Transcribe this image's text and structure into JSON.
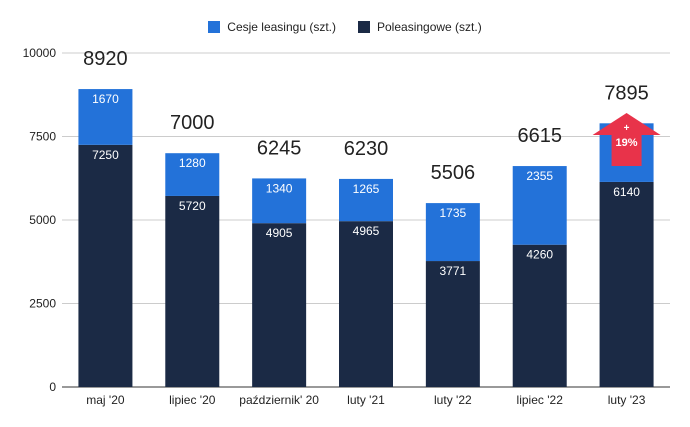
{
  "chart_data": {
    "type": "bar",
    "stacked": true,
    "categories": [
      "maj '20",
      "lipiec '20",
      "październik' 20",
      "luty '21",
      "luty '22",
      "lipiec '22",
      "luty '23"
    ],
    "series": [
      {
        "name": "Poleasingowe (szt.)",
        "values": [
          7250,
          5720,
          4905,
          4965,
          3771,
          4260,
          6140
        ],
        "color": "#1b2a45"
      },
      {
        "name": "Cesje leasingu (szt.)",
        "values": [
          1670,
          1280,
          1340,
          1265,
          1735,
          2355,
          1755
        ],
        "color": "#2372d9"
      }
    ],
    "totals": [
      "8920",
      "7000",
      "6245",
      "6230",
      "5506",
      "6615",
      "7895"
    ],
    "y_ticks": [
      "0",
      "2500",
      "5000",
      "7500",
      "10000"
    ],
    "ylim": [
      0,
      10000
    ],
    "grid": true,
    "legend_position": "top-center",
    "annotation": {
      "category_index": 6,
      "text_top": "+",
      "text_bottom": "19%",
      "color": "#e8334a",
      "shape": "up-arrow"
    }
  }
}
